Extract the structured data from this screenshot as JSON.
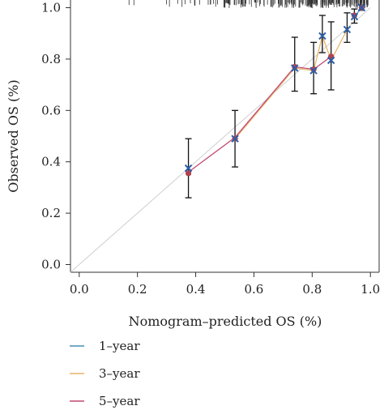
{
  "chart_data": {
    "type": "line",
    "title": "",
    "xlabel": "Nomogram–predicted OS (%)",
    "ylabel": "Observed OS (%)",
    "xlim": [
      -0.03,
      1.03
    ],
    "ylim": [
      -0.03,
      1.03
    ],
    "x_ticks": [
      0.0,
      0.2,
      0.4,
      0.6,
      0.8,
      1.0
    ],
    "x_tick_labels": [
      "0.0",
      "0.2",
      "0.4",
      "0.6",
      "0.8",
      "1.0"
    ],
    "y_ticks": [
      0.0,
      0.2,
      0.4,
      0.6,
      0.8,
      1.0
    ],
    "y_tick_labels": [
      "0.0",
      "0.2",
      "0.4",
      "0.6",
      "0.8",
      "1.0"
    ],
    "reference_line": {
      "x": [
        0,
        1
      ],
      "y": [
        0,
        1
      ],
      "color": "#cfcfcf"
    },
    "series": [
      {
        "name": "1–year",
        "color": "#4a8db3",
        "x": [
          0.945,
          0.97
        ],
        "y": [
          0.965,
          1.0
        ]
      },
      {
        "name": "3–year",
        "color": "#e8b66a",
        "x": [
          0.535,
          0.74,
          0.805,
          0.835,
          0.865,
          0.92
        ],
        "y": [
          0.49,
          0.765,
          0.755,
          0.89,
          0.795,
          0.915
        ]
      },
      {
        "name": "5–year",
        "color": "#c24a74",
        "x": [
          0.375,
          0.535,
          0.74,
          0.805,
          0.865
        ],
        "y": [
          0.36,
          0.495,
          0.77,
          0.76,
          0.81
        ]
      }
    ],
    "calibration_points": [
      {
        "x": 0.375,
        "y": 0.375,
        "lo": 0.26,
        "hi": 0.49,
        "dot_y": 0.355
      },
      {
        "x": 0.535,
        "y": 0.49,
        "lo": 0.38,
        "hi": 0.6,
        "dot_y": 0.49
      },
      {
        "x": 0.74,
        "y": 0.765,
        "lo": 0.675,
        "hi": 0.885,
        "dot_y": 0.77
      },
      {
        "x": 0.805,
        "y": 0.755,
        "lo": 0.665,
        "hi": 0.865,
        "dot_y": 0.76
      },
      {
        "x": 0.835,
        "y": 0.89,
        "lo": 0.825,
        "hi": 0.97,
        "dot_y": null
      },
      {
        "x": 0.865,
        "y": 0.795,
        "lo": 0.68,
        "hi": 0.945,
        "dot_y": 0.81
      },
      {
        "x": 0.92,
        "y": 0.915,
        "lo": 0.865,
        "hi": 0.98,
        "dot_y": null
      },
      {
        "x": 0.945,
        "y": 0.965,
        "lo": 0.94,
        "hi": 0.995,
        "dot_y": 0.97
      },
      {
        "x": 0.97,
        "y": 1.0,
        "lo": 0.99,
        "hi": 1.01,
        "dot_y": 1.0
      }
    ],
    "marker_colors": {
      "cross": "#2b5fa8",
      "dot": "#b0434f",
      "errorbar": "#111111"
    },
    "rug": true,
    "legend": {
      "position": "bottom-left",
      "entries": [
        {
          "label": "1–year",
          "color": "#4a8db3"
        },
        {
          "label": "3–year",
          "color": "#e8b66a"
        },
        {
          "label": "5–year",
          "color": "#c24a74"
        }
      ]
    },
    "grid": false
  }
}
